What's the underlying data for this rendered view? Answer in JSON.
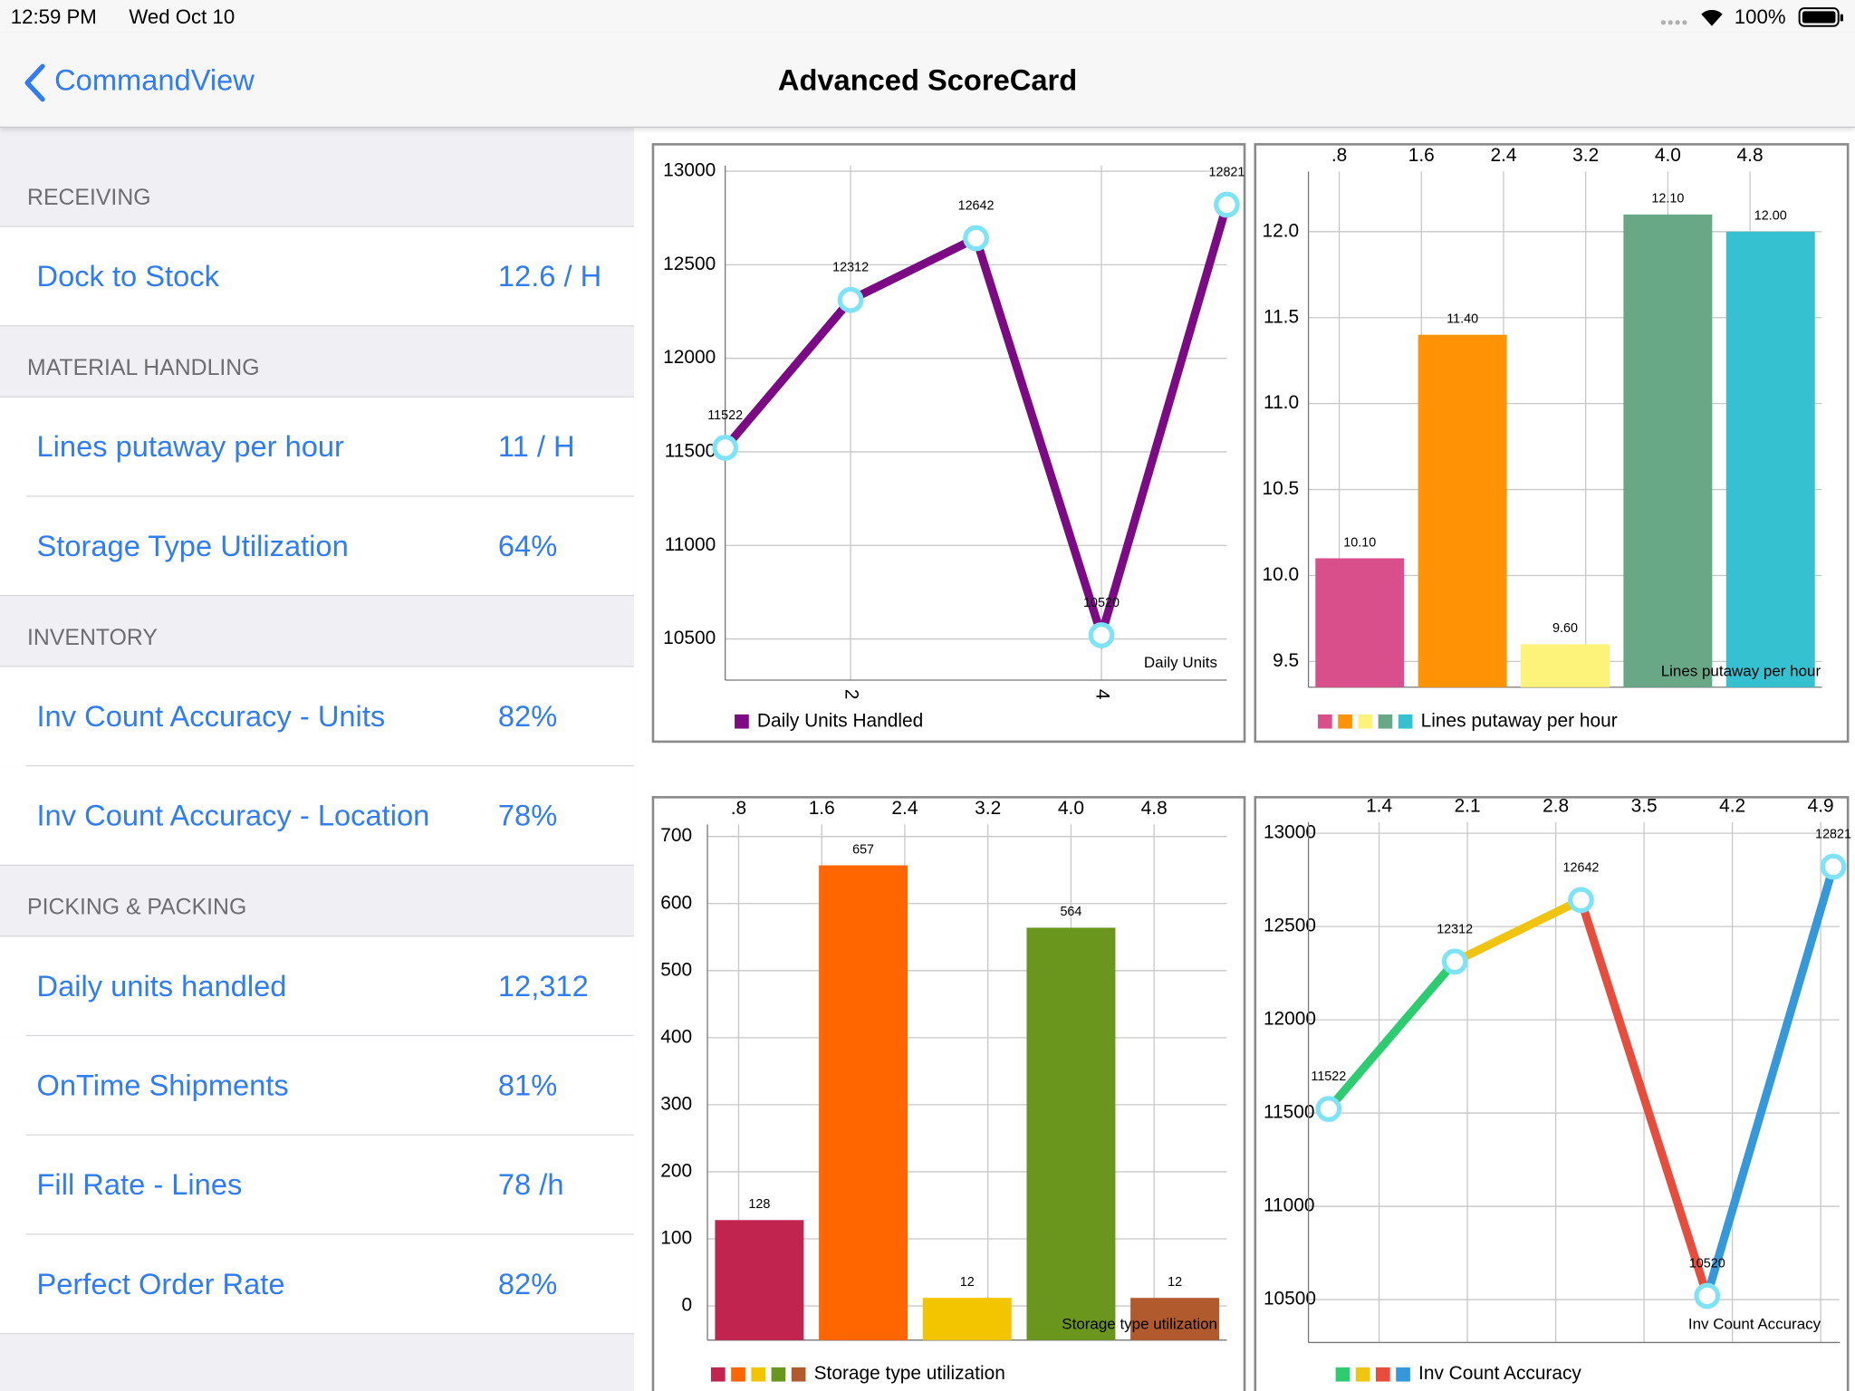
{
  "status_bar": {
    "time": "12:59 PM",
    "date": "Wed Oct 10",
    "battery": "100%"
  },
  "nav_bar": {
    "back": "CommandView",
    "title": "Advanced ScoreCard"
  },
  "sidebar": {
    "sections": [
      {
        "title": "RECEIVING",
        "items": [
          {
            "label": "Dock to Stock",
            "value": "12.6 / H"
          }
        ]
      },
      {
        "title": "MATERIAL HANDLING",
        "items": [
          {
            "label": "Lines putaway per hour",
            "value": "11 / H"
          },
          {
            "label": "Storage Type Utilization",
            "value": "64%"
          }
        ]
      },
      {
        "title": "INVENTORY",
        "items": [
          {
            "label": "Inv Count Accuracy - Units",
            "value": "82%"
          },
          {
            "label": "Inv Count Accuracy - Location",
            "value": "78%"
          }
        ]
      },
      {
        "title": "PICKING & PACKING",
        "items": [
          {
            "label": "Daily units handled",
            "value": "12,312"
          },
          {
            "label": "OnTime Shipments",
            "value": "81%"
          },
          {
            "label": "Fill Rate - Lines",
            "value": "78 /h"
          },
          {
            "label": "Perfect Order Rate",
            "value": "82%"
          }
        ]
      }
    ]
  },
  "chart_data": [
    {
      "type": "line",
      "x": [
        1,
        2,
        3,
        4,
        5
      ],
      "values": [
        11522,
        12312,
        12642,
        10520,
        12821
      ],
      "color": "#7b0a84",
      "marker_color": "#7fe3f7",
      "xlim": [
        1,
        5
      ],
      "xticks": [
        2,
        4
      ],
      "xaxis": "bottom",
      "ylim": [
        10280,
        13030
      ],
      "yticks": [
        10500,
        11000,
        11500,
        12000,
        12500,
        13000
      ],
      "grid": true,
      "annotation": "Daily Units",
      "legend": "Daily Units Handled"
    },
    {
      "type": "bar",
      "x": [
        1,
        2,
        3,
        4,
        5
      ],
      "values": [
        10.1,
        11.4,
        9.6,
        12.1,
        12.0
      ],
      "value_labels": [
        "10.10",
        "11.40",
        "9.60",
        "12.10",
        "12.00"
      ],
      "colors": [
        "#d94f8c",
        "#ff9305",
        "#fdf27a",
        "#69a886",
        "#36c1d0"
      ],
      "xlim": [
        0.5,
        5.5
      ],
      "xticks": [
        {
          "value": 0.8,
          "label": ".8"
        },
        1.6,
        2.4,
        3.2,
        {
          "value": 4,
          "label": "4.0"
        },
        4.8
      ],
      "xaxis": "top",
      "ylim": [
        9.35,
        12.35
      ],
      "yticks": [
        9.5,
        {
          "value": 10,
          "label": "10.0"
        },
        10.5,
        {
          "value": 11,
          "label": "11.0"
        },
        11.5,
        {
          "value": 12,
          "label": "12.0"
        }
      ],
      "grid": true,
      "annotation": "Lines putaway per hour",
      "legend": "Lines putaway per hour"
    },
    {
      "type": "bar",
      "x": [
        1,
        2,
        3,
        4,
        5
      ],
      "values": [
        128,
        657,
        12,
        564,
        12
      ],
      "colors": [
        "#c0244f",
        "#ff6600",
        "#f2c500",
        "#6a961e",
        "#b15a2e"
      ],
      "xlim": [
        0.5,
        5.5
      ],
      "xticks": [
        {
          "value": 0.8,
          "label": ".8"
        },
        1.6,
        2.4,
        3.2,
        {
          "value": 4,
          "label": "4.0"
        },
        4.8
      ],
      "xaxis": "top",
      "ylim": [
        -51,
        718
      ],
      "yticks": [
        0,
        100,
        200,
        300,
        400,
        500,
        600,
        700
      ],
      "grid": true,
      "annotation": "Storage type utilization",
      "legend": "Storage type utilization"
    },
    {
      "type": "line",
      "x": [
        1,
        2,
        3,
        4,
        5
      ],
      "values": [
        11522,
        12312,
        12642,
        10520,
        12821
      ],
      "segment_colors": [
        "#2ecc71",
        "#f1c40f",
        "#e74c3c",
        "#3498db"
      ],
      "marker_color": "#7fe3f7",
      "xlim": [
        0.84,
        5.05
      ],
      "xticks": [
        1.4,
        2.1,
        2.8,
        3.5,
        4.2,
        4.9
      ],
      "xaxis": "top",
      "ylim": [
        10270,
        13060
      ],
      "yticks": [
        10500,
        11000,
        11500,
        12000,
        12500,
        13000
      ],
      "grid": true,
      "annotation": "Inv Count Accuracy",
      "legend": "Inv Count Accuracy"
    }
  ]
}
